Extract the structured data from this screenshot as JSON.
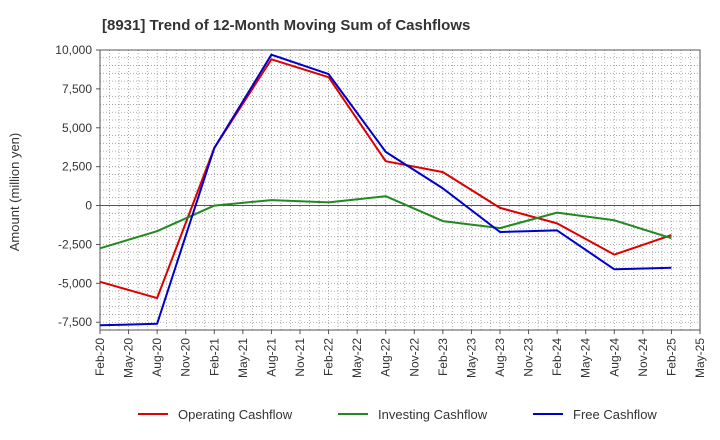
{
  "chart_data": {
    "type": "line",
    "title": "[8931]  Trend of 12-Month Moving Sum of Cashflows",
    "xlabel": "",
    "ylabel": "Amount (million yen)",
    "ylim": [
      -8000,
      10000
    ],
    "yticks": [
      10000,
      7500,
      5000,
      2500,
      0,
      -2500,
      -5000,
      -7500
    ],
    "ytick_labels": [
      "10,000",
      "7,500",
      "5,000",
      "2,500",
      "0",
      "-2,500",
      "-5,000",
      "-7,500"
    ],
    "x_ticks": [
      "Feb-20",
      "May-20",
      "Aug-20",
      "Nov-20",
      "Feb-21",
      "May-21",
      "Aug-21",
      "Nov-21",
      "Feb-22",
      "May-22",
      "Aug-22",
      "Nov-22",
      "Feb-23",
      "May-23",
      "Aug-23",
      "Nov-23",
      "Feb-24",
      "May-24",
      "Aug-24",
      "Nov-24",
      "Feb-25",
      "May-25"
    ],
    "x": [
      "Feb-20",
      "Aug-20",
      "Feb-21",
      "Aug-21",
      "Feb-22",
      "Aug-22",
      "Feb-23",
      "Aug-23",
      "Feb-24",
      "Aug-24",
      "Feb-25"
    ],
    "grid": true,
    "legend_position": "bottom",
    "series": [
      {
        "name": "Operating Cashflow",
        "color": "#dd0000",
        "values": [
          -4900,
          -5950,
          3700,
          9400,
          8250,
          2850,
          2150,
          -150,
          -1150,
          -3150,
          -1900
        ]
      },
      {
        "name": "Investing Cashflow",
        "color": "#228822",
        "values": [
          -2750,
          -1650,
          0,
          350,
          200,
          600,
          -1000,
          -1450,
          -450,
          -950,
          -2100
        ]
      },
      {
        "name": "Free Cashflow",
        "color": "#0000cc",
        "values": [
          -7700,
          -7600,
          3700,
          9700,
          8450,
          3450,
          1100,
          -1700,
          -1600,
          -4100,
          -4000
        ]
      }
    ]
  }
}
